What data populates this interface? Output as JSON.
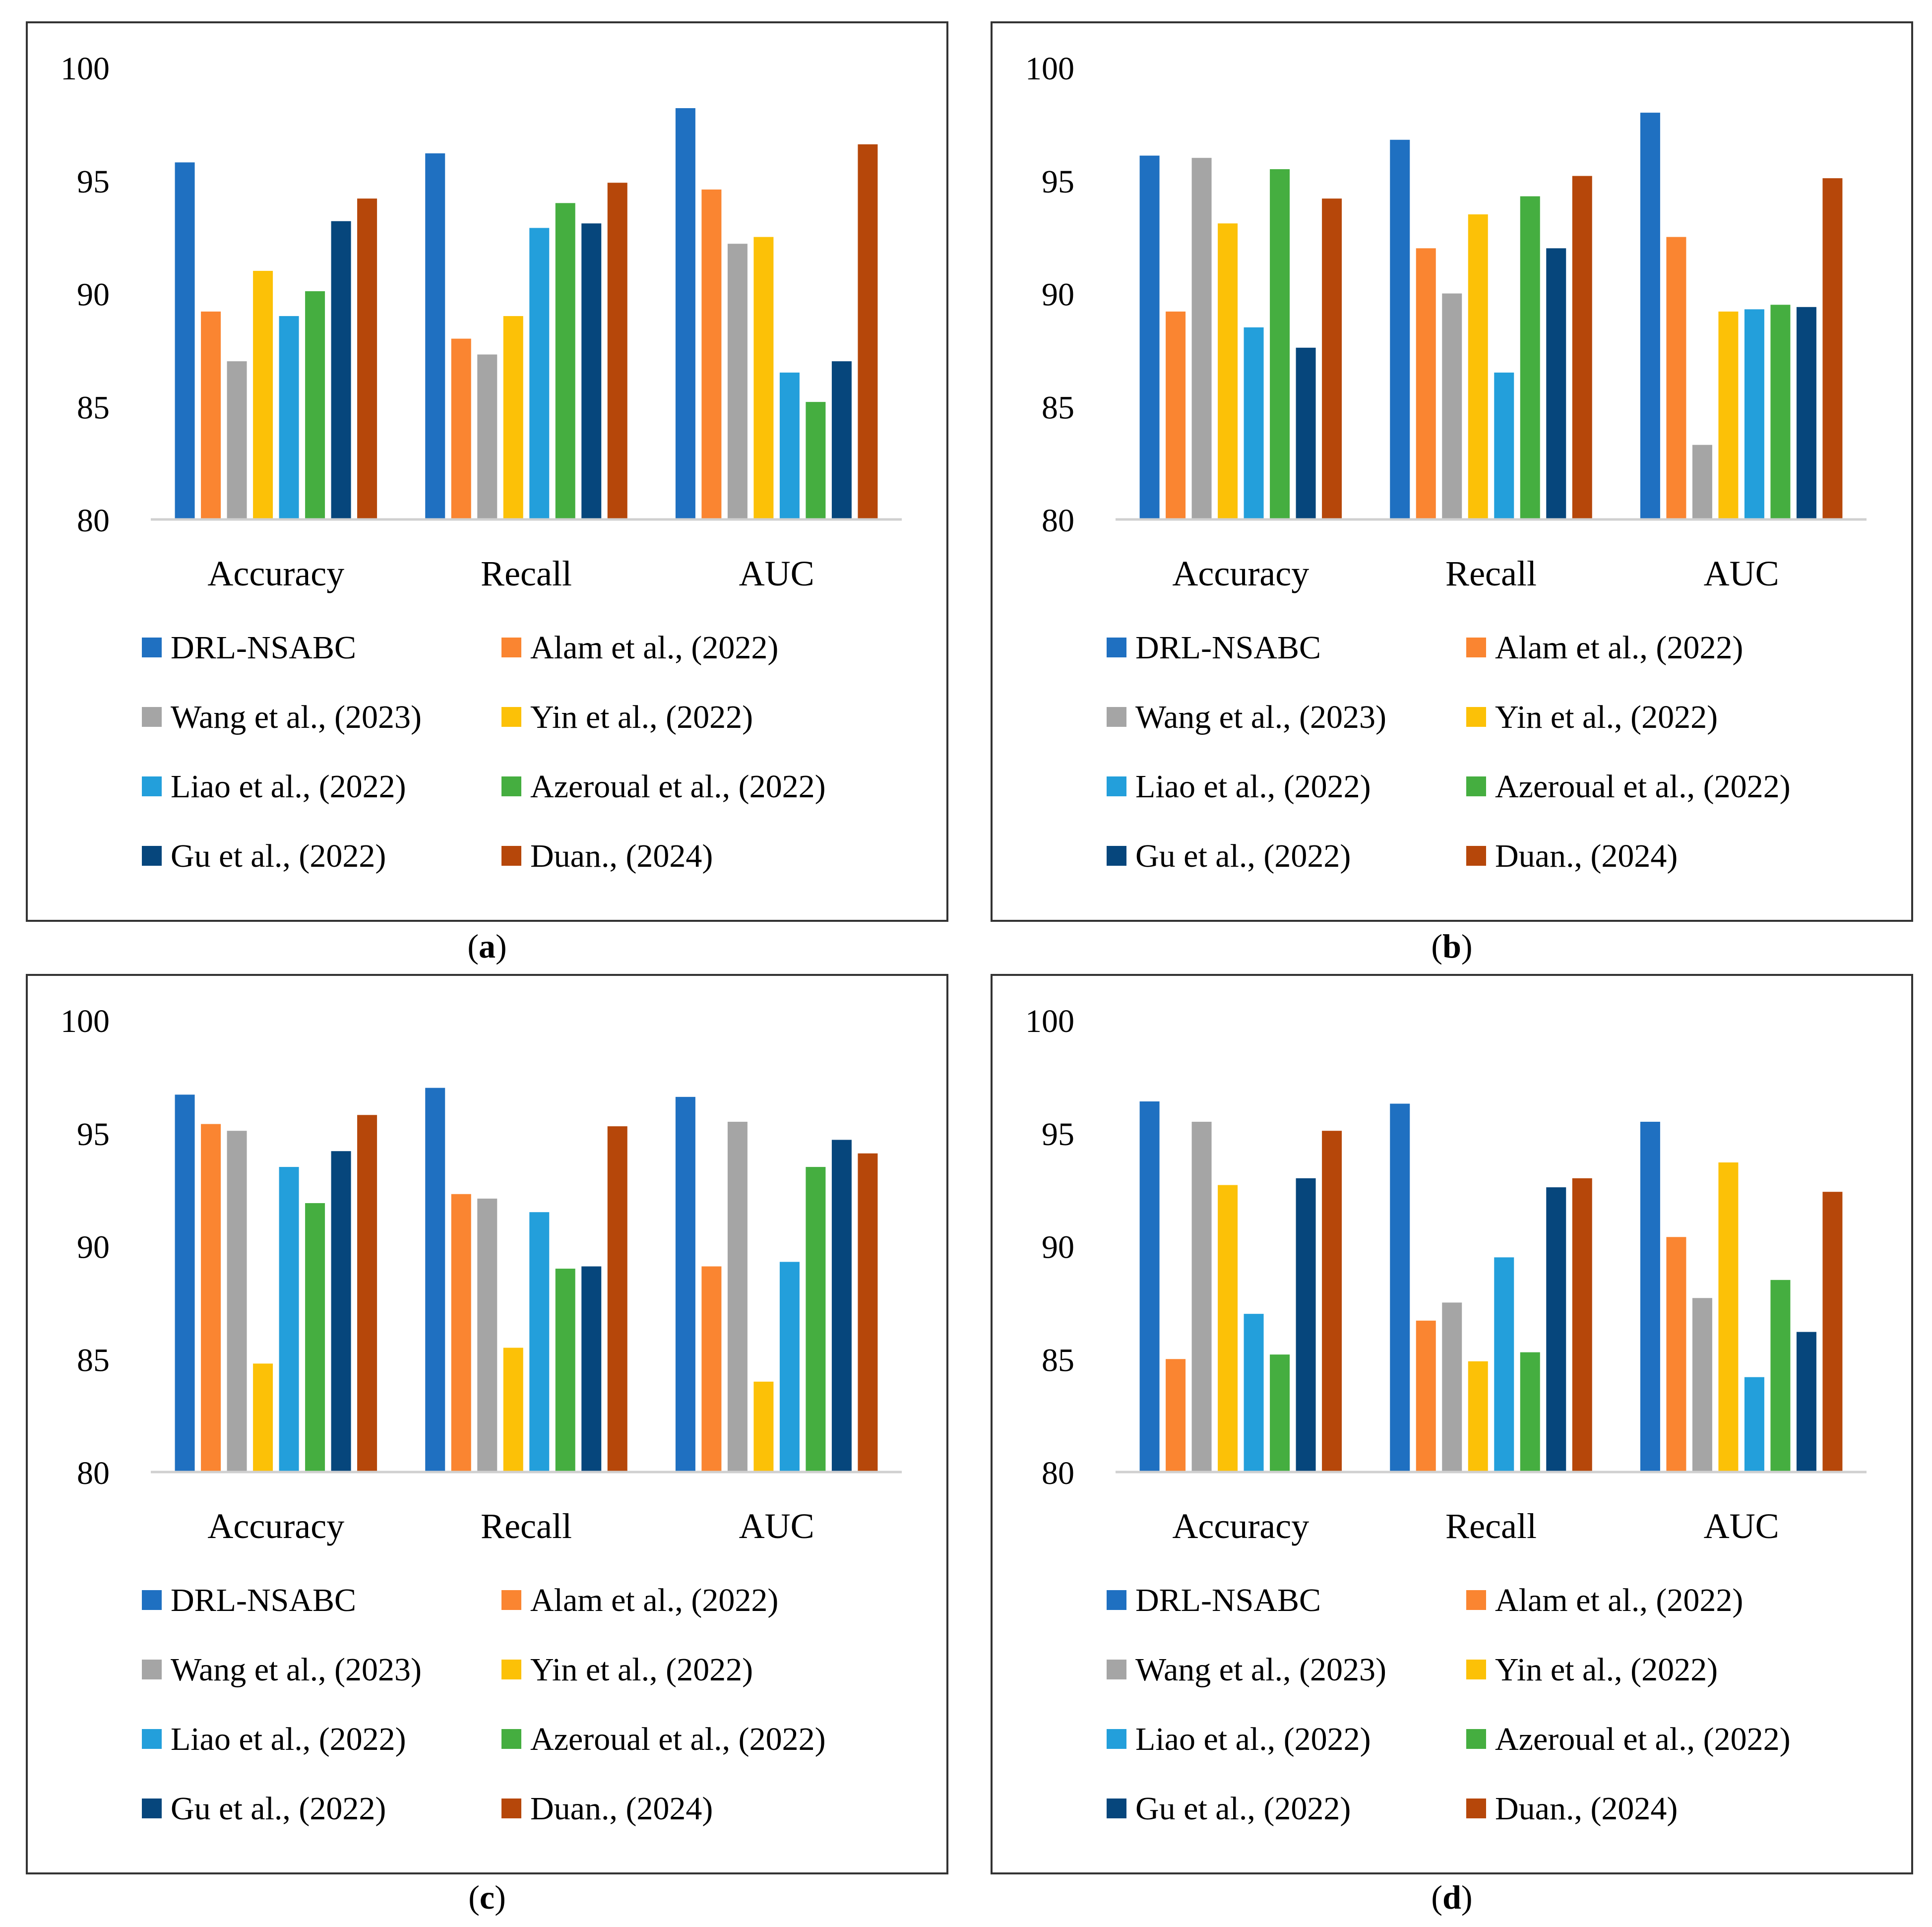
{
  "colors": {
    "series": [
      "#1f70c1",
      "#fa8531",
      "#a5a5a5",
      "#fcc107",
      "#239fdb",
      "#45ae40",
      "#06467c",
      "#b6470a"
    ],
    "axis": "#d0d0d0",
    "text": "#000000"
  },
  "chart_data": [
    {
      "type": "bar",
      "panel_label": "a",
      "categories": [
        "Accuracy",
        "Recall",
        "AUC"
      ],
      "ylim": [
        80,
        100
      ],
      "yticks": [
        80,
        85,
        90,
        95,
        100
      ],
      "grid": false,
      "legend_position": "bottom",
      "series": [
        {
          "name": "DRL-NSABC",
          "values": [
            95.8,
            96.2,
            98.2
          ]
        },
        {
          "name": "Alam et al., (2022)",
          "values": [
            89.2,
            88.0,
            94.6
          ]
        },
        {
          "name": "Wang et al., (2023)",
          "values": [
            87.0,
            87.3,
            92.2
          ]
        },
        {
          "name": "Yin et al., (2022)",
          "values": [
            91.0,
            89.0,
            92.5
          ]
        },
        {
          "name": "Liao et al., (2022)",
          "values": [
            89.0,
            92.9,
            86.5
          ]
        },
        {
          "name": "Azeroual et al., (2022)",
          "values": [
            90.1,
            94.0,
            85.2
          ]
        },
        {
          "name": "Gu et al., (2022)",
          "values": [
            93.2,
            93.1,
            87.0
          ]
        },
        {
          "name": "Duan., (2024)",
          "values": [
            94.2,
            94.9,
            96.6
          ]
        }
      ]
    },
    {
      "type": "bar",
      "panel_label": "b",
      "categories": [
        "Accuracy",
        "Recall",
        "AUC"
      ],
      "ylim": [
        80,
        100
      ],
      "yticks": [
        80,
        85,
        90,
        95,
        100
      ],
      "grid": false,
      "legend_position": "bottom",
      "series": [
        {
          "name": "DRL-NSABC",
          "values": [
            96.1,
            96.8,
            98.0
          ]
        },
        {
          "name": "Alam et al., (2022)",
          "values": [
            89.2,
            92.0,
            92.5
          ]
        },
        {
          "name": "Wang et al., (2023)",
          "values": [
            96.0,
            90.0,
            83.3
          ]
        },
        {
          "name": "Yin et al., (2022)",
          "values": [
            93.1,
            93.5,
            89.2
          ]
        },
        {
          "name": "Liao et al., (2022)",
          "values": [
            88.5,
            86.5,
            89.3
          ]
        },
        {
          "name": "Azeroual et al., (2022)",
          "values": [
            95.5,
            94.3,
            89.5
          ]
        },
        {
          "name": "Gu et al., (2022)",
          "values": [
            87.6,
            92.0,
            89.4
          ]
        },
        {
          "name": "Duan., (2024)",
          "values": [
            94.2,
            95.2,
            95.1
          ]
        }
      ]
    },
    {
      "type": "bar",
      "panel_label": "c",
      "categories": [
        "Accuracy",
        "Recall",
        "AUC"
      ],
      "ylim": [
        80,
        100
      ],
      "yticks": [
        80,
        85,
        90,
        95,
        100
      ],
      "grid": false,
      "legend_position": "bottom",
      "series": [
        {
          "name": "DRL-NSABC",
          "values": [
            96.7,
            97.0,
            96.6
          ]
        },
        {
          "name": "Alam et al., (2022)",
          "values": [
            95.4,
            92.3,
            89.1
          ]
        },
        {
          "name": "Wang et al., (2023)",
          "values": [
            95.1,
            92.1,
            95.5
          ]
        },
        {
          "name": "Yin et al., (2022)",
          "values": [
            84.8,
            85.5,
            84.0
          ]
        },
        {
          "name": "Liao et al., (2022)",
          "values": [
            93.5,
            91.5,
            89.3
          ]
        },
        {
          "name": "Azeroual et al., (2022)",
          "values": [
            91.9,
            89.0,
            93.5
          ]
        },
        {
          "name": "Gu et al., (2022)",
          "values": [
            94.2,
            89.1,
            94.7
          ]
        },
        {
          "name": "Duan., (2024)",
          "values": [
            95.8,
            95.3,
            94.1
          ]
        }
      ]
    },
    {
      "type": "bar",
      "panel_label": "d",
      "categories": [
        "Accuracy",
        "Recall",
        "AUC"
      ],
      "ylim": [
        80,
        100
      ],
      "yticks": [
        80,
        85,
        90,
        95,
        100
      ],
      "grid": false,
      "legend_position": "bottom",
      "series": [
        {
          "name": "DRL-NSABC",
          "values": [
            96.4,
            96.3,
            95.5
          ]
        },
        {
          "name": "Alam et al., (2022)",
          "values": [
            85.0,
            86.7,
            90.4
          ]
        },
        {
          "name": "Wang et al., (2023)",
          "values": [
            95.5,
            87.5,
            87.7
          ]
        },
        {
          "name": "Yin et al., (2022)",
          "values": [
            92.7,
            84.9,
            93.7
          ]
        },
        {
          "name": "Liao et al., (2022)",
          "values": [
            87.0,
            89.5,
            84.2
          ]
        },
        {
          "name": "Azeroual et al., (2022)",
          "values": [
            85.2,
            85.3,
            88.5
          ]
        },
        {
          "name": "Gu et al., (2022)",
          "values": [
            93.0,
            92.6,
            86.2
          ]
        },
        {
          "name": "Duan., (2024)",
          "values": [
            95.1,
            93.0,
            92.4
          ]
        }
      ]
    }
  ]
}
